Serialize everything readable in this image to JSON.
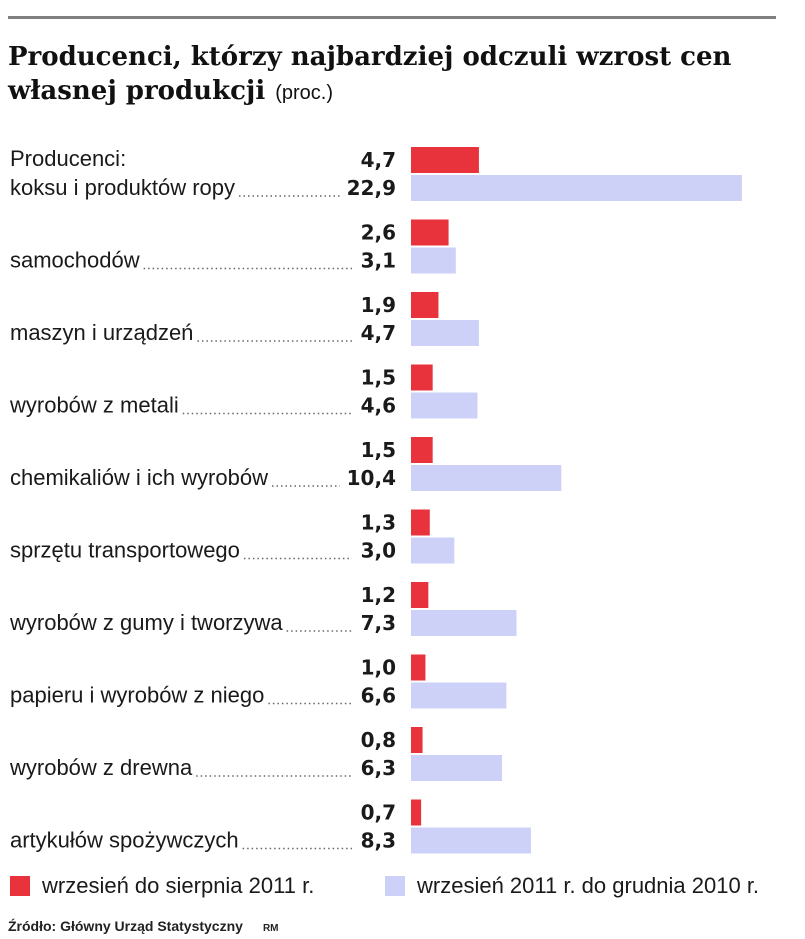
{
  "title": "Producenci, którzy najbardziej odczuli wzrost cen własnej produkcji",
  "unit": "(proc.)",
  "colors": {
    "series1": "#e8323c",
    "series2": "#cdd0f7"
  },
  "chart_data": {
    "type": "bar",
    "orientation": "horizontal",
    "group_header": "Producenci:",
    "categories": [
      "koksu i produktów ropy",
      "samochodów",
      "maszyn i urządzeń",
      "wyrobów z metali",
      "chemikaliów i ich wyrobów",
      "sprzętu transportowego",
      "wyrobów z gumy i tworzywa",
      "papieru i wyrobów z niego",
      "wyrobów z drewna",
      "artykułów spożywczych"
    ],
    "series": [
      {
        "name": "wrzesień do sierpnia 2011 r.",
        "values": [
          4.7,
          2.6,
          1.9,
          1.5,
          1.5,
          1.3,
          1.2,
          1.0,
          0.8,
          0.7
        ]
      },
      {
        "name": "wrzesień 2011 r. do grudnia 2010 r.",
        "values": [
          22.9,
          3.1,
          4.7,
          4.6,
          10.4,
          3.0,
          7.3,
          6.6,
          6.3,
          8.3
        ]
      }
    ],
    "value_labels": [
      [
        "4,7",
        "2,6",
        "1,9",
        "1,5",
        "1,5",
        "1,3",
        "1,2",
        "1,0",
        "0,8",
        "0,7"
      ],
      [
        "22,9",
        "3,1",
        "4,7",
        "4,6",
        "10,4",
        "3,0",
        "7,3",
        "6,6",
        "6,3",
        "8,3"
      ]
    ],
    "xlim": [
      0,
      23
    ],
    "legend_position": "bottom"
  },
  "source": "Źródło: Główny Urząd Statystyczny",
  "credit": "RM"
}
